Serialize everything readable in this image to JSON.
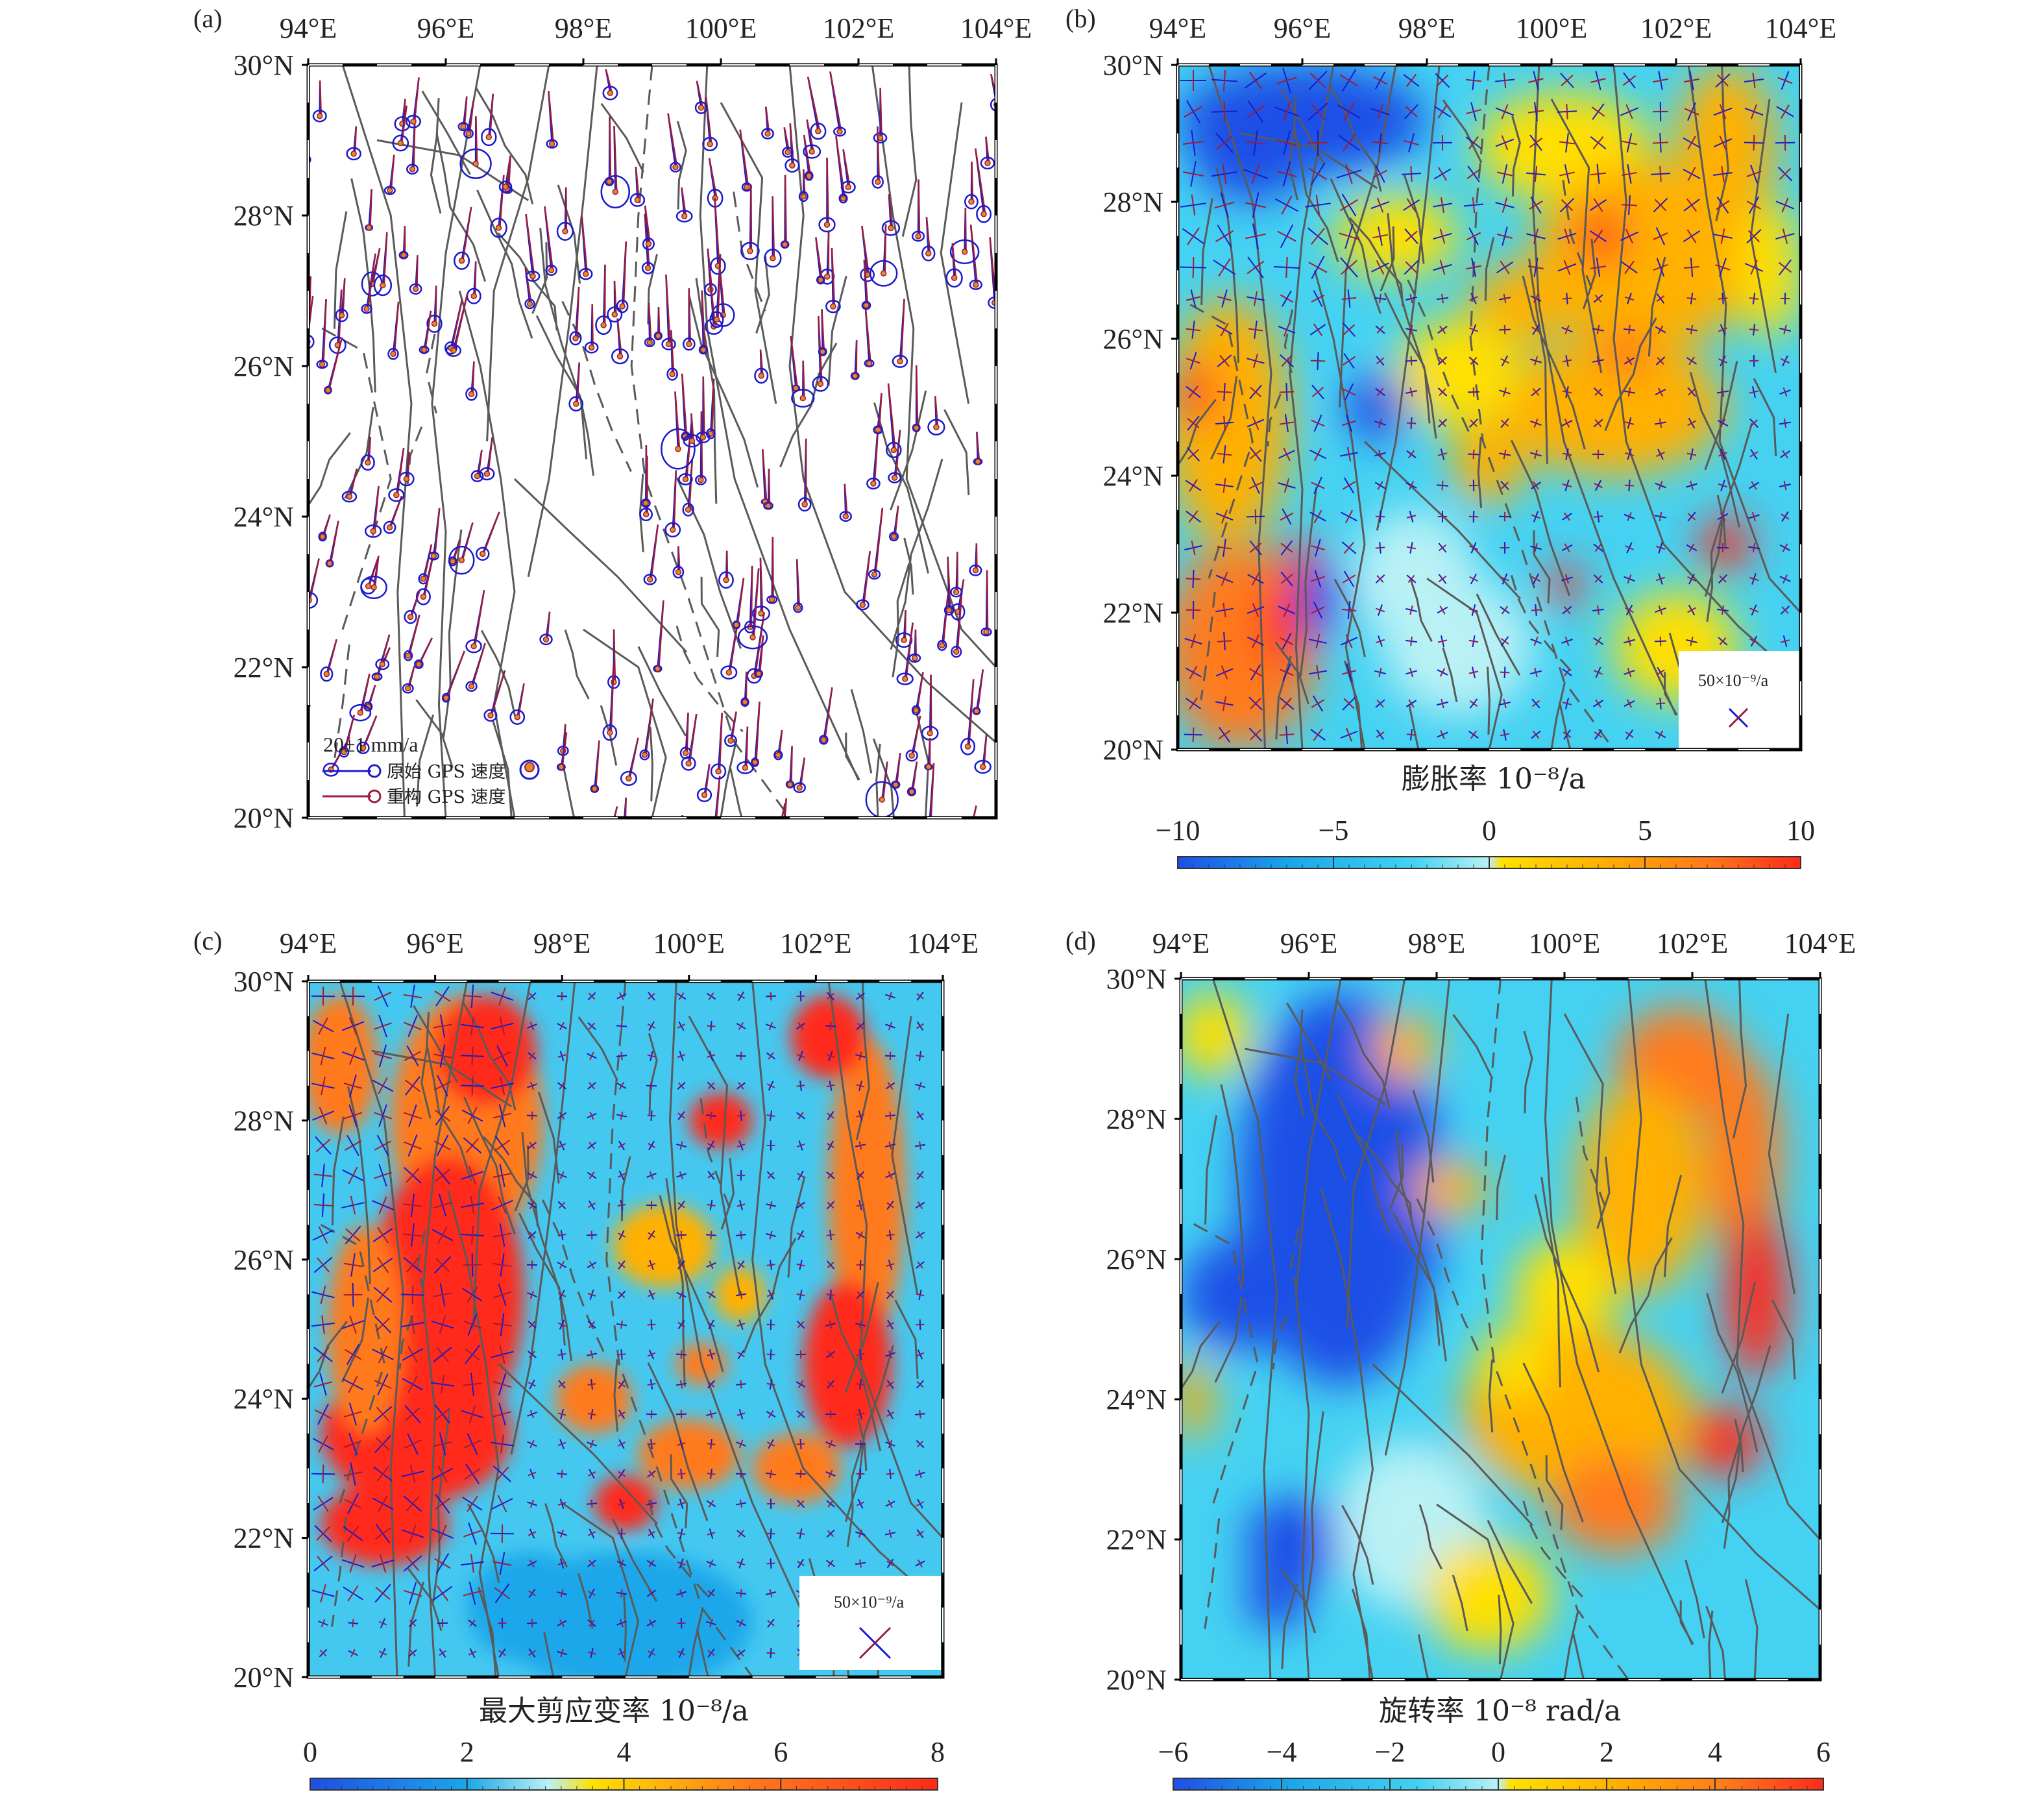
{
  "figure": {
    "longitude_ticks": [
      "94°E",
      "96°E",
      "98°E",
      "100°E",
      "102°E",
      "104°E"
    ],
    "latitude_ticks": [
      "30°N",
      "28°N",
      "26°N",
      "24°N",
      "22°N",
      "20°N"
    ],
    "colors": {
      "fault": "#5a5a5a",
      "gps_original": "#1a1acc",
      "gps_reconstructed": "#9b1c3c",
      "axis": "#000000",
      "colormap": [
        "#1e4fe6",
        "#1aa7ea",
        "#45d2f2",
        "#b9f1f5",
        "#ffe000",
        "#ffb000",
        "#ff7a1a",
        "#ff2a1a"
      ]
    }
  },
  "panels": {
    "a": {
      "label": "(a)",
      "legend": {
        "scale": "20±1 mm/a",
        "original": "原始 GPS 速度",
        "reconstructed": "重构 GPS 速度"
      }
    },
    "b": {
      "label": "(b)",
      "colorbar_title": "膨胀率 10⁻⁸/a",
      "colorbar_ticks": [
        "−10",
        "−5",
        "0",
        "5",
        "10"
      ],
      "scale_box": "50×10⁻⁹/a"
    },
    "c": {
      "label": "(c)",
      "colorbar_title": "最大剪应变率 10⁻⁸/a",
      "colorbar_ticks": [
        "0",
        "2",
        "4",
        "6",
        "8"
      ],
      "scale_box": "50×10⁻⁹/a"
    },
    "d": {
      "label": "(d)",
      "colorbar_title": "旋转率 10⁻⁸ rad/a",
      "colorbar_ticks": [
        "−6",
        "−4",
        "−2",
        "0",
        "2",
        "4",
        "6"
      ]
    }
  }
}
